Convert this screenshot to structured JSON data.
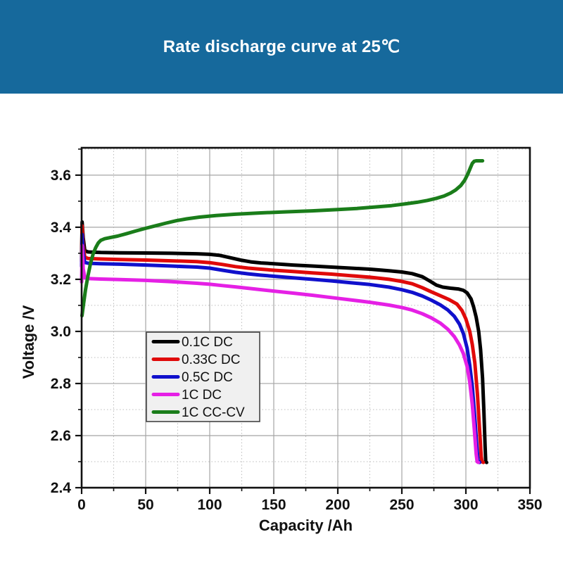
{
  "header": {
    "title": "Rate discharge curve at 25℃",
    "background_color": "#16699c",
    "text_color": "#ffffff"
  },
  "chart_data": {
    "type": "line",
    "title": "Rate discharge curve at 25℃",
    "xlabel": "Capacity /Ah",
    "ylabel": "Voltage /V",
    "xlim": [
      0,
      350
    ],
    "ylim": [
      2.4,
      3.705
    ],
    "x_major_ticks": [
      0,
      50,
      100,
      150,
      200,
      250,
      300,
      350
    ],
    "x_minor_step": 25,
    "y_major_ticks": [
      2.4,
      2.6,
      2.8,
      3.0,
      3.2,
      3.4,
      3.6
    ],
    "y_minor_step": 0.1,
    "grid": "major-solid-gray, minor-dotted-light",
    "legend_position": "inside-left-middle",
    "axis_color": "#111111",
    "grid_major_color": "#a5a5a5",
    "grid_minor_color": "#bdbdbd",
    "legend_bg": "#f0f0f0",
    "legend_border": "#444444",
    "series": [
      {
        "name": "0.1C DC",
        "color": "#000000",
        "points": [
          [
            0,
            3.3
          ],
          [
            0.4,
            3.42
          ],
          [
            1.2,
            3.36
          ],
          [
            2.5,
            3.31
          ],
          [
            5,
            3.305
          ],
          [
            15,
            3.303
          ],
          [
            30,
            3.302
          ],
          [
            50,
            3.301
          ],
          [
            70,
            3.3
          ],
          [
            90,
            3.298
          ],
          [
            100,
            3.296
          ],
          [
            108,
            3.292
          ],
          [
            116,
            3.283
          ],
          [
            124,
            3.274
          ],
          [
            132,
            3.267
          ],
          [
            140,
            3.263
          ],
          [
            150,
            3.26
          ],
          [
            165,
            3.255
          ],
          [
            180,
            3.251
          ],
          [
            195,
            3.247
          ],
          [
            210,
            3.243
          ],
          [
            225,
            3.239
          ],
          [
            240,
            3.233
          ],
          [
            250,
            3.228
          ],
          [
            258,
            3.222
          ],
          [
            266,
            3.21
          ],
          [
            272,
            3.193
          ],
          [
            277,
            3.178
          ],
          [
            282,
            3.17
          ],
          [
            288,
            3.166
          ],
          [
            294,
            3.163
          ],
          [
            298,
            3.158
          ],
          [
            301,
            3.148
          ],
          [
            304,
            3.125
          ],
          [
            306,
            3.095
          ],
          [
            308,
            3.055
          ],
          [
            310,
            3.0
          ],
          [
            311.5,
            2.93
          ],
          [
            313,
            2.82
          ],
          [
            314,
            2.7
          ],
          [
            315,
            2.56
          ],
          [
            315.5,
            2.5
          ],
          [
            316.2,
            2.497
          ]
        ]
      },
      {
        "name": "0.33C DC",
        "color": "#e00a0a",
        "points": [
          [
            0,
            3.27
          ],
          [
            0.4,
            3.405
          ],
          [
            1.2,
            3.33
          ],
          [
            2.5,
            3.285
          ],
          [
            5,
            3.28
          ],
          [
            15,
            3.278
          ],
          [
            30,
            3.276
          ],
          [
            50,
            3.274
          ],
          [
            70,
            3.271
          ],
          [
            90,
            3.268
          ],
          [
            100,
            3.264
          ],
          [
            110,
            3.257
          ],
          [
            120,
            3.249
          ],
          [
            130,
            3.243
          ],
          [
            140,
            3.239
          ],
          [
            150,
            3.235
          ],
          [
            165,
            3.23
          ],
          [
            180,
            3.225
          ],
          [
            195,
            3.22
          ],
          [
            210,
            3.214
          ],
          [
            225,
            3.208
          ],
          [
            240,
            3.2
          ],
          [
            250,
            3.192
          ],
          [
            258,
            3.183
          ],
          [
            266,
            3.168
          ],
          [
            273,
            3.152
          ],
          [
            280,
            3.137
          ],
          [
            287,
            3.122
          ],
          [
            293,
            3.105
          ],
          [
            297,
            3.08
          ],
          [
            300,
            3.048
          ],
          [
            303,
            3.0
          ],
          [
            305,
            2.95
          ],
          [
            307,
            2.88
          ],
          [
            309,
            2.76
          ],
          [
            310.5,
            2.64
          ],
          [
            312,
            2.52
          ],
          [
            312.6,
            2.5
          ],
          [
            313.6,
            2.497
          ]
        ]
      },
      {
        "name": "0.5C DC",
        "color": "#1010cc",
        "points": [
          [
            0,
            3.25
          ],
          [
            0.4,
            3.372
          ],
          [
            1.2,
            3.3
          ],
          [
            2.5,
            3.265
          ],
          [
            5,
            3.262
          ],
          [
            15,
            3.26
          ],
          [
            30,
            3.258
          ],
          [
            50,
            3.255
          ],
          [
            70,
            3.251
          ],
          [
            90,
            3.247
          ],
          [
            100,
            3.243
          ],
          [
            110,
            3.235
          ],
          [
            120,
            3.227
          ],
          [
            130,
            3.221
          ],
          [
            140,
            3.216
          ],
          [
            150,
            3.212
          ],
          [
            165,
            3.206
          ],
          [
            180,
            3.2
          ],
          [
            195,
            3.194
          ],
          [
            210,
            3.187
          ],
          [
            225,
            3.18
          ],
          [
            240,
            3.17
          ],
          [
            250,
            3.16
          ],
          [
            258,
            3.15
          ],
          [
            266,
            3.136
          ],
          [
            273,
            3.12
          ],
          [
            280,
            3.102
          ],
          [
            286,
            3.082
          ],
          [
            291,
            3.058
          ],
          [
            295,
            3.028
          ],
          [
            298,
            2.992
          ],
          [
            301,
            2.935
          ],
          [
            303,
            2.87
          ],
          [
            305,
            2.79
          ],
          [
            307,
            2.67
          ],
          [
            308.5,
            2.56
          ],
          [
            309.5,
            2.505
          ],
          [
            310.8,
            2.497
          ]
        ]
      },
      {
        "name": "1C DC",
        "color": "#e520e5",
        "points": [
          [
            0,
            3.19
          ],
          [
            0.4,
            3.33
          ],
          [
            1.2,
            3.24
          ],
          [
            2.5,
            3.206
          ],
          [
            5,
            3.203
          ],
          [
            15,
            3.201
          ],
          [
            30,
            3.199
          ],
          [
            50,
            3.196
          ],
          [
            70,
            3.191
          ],
          [
            90,
            3.185
          ],
          [
            100,
            3.181
          ],
          [
            110,
            3.176
          ],
          [
            120,
            3.171
          ],
          [
            135,
            3.163
          ],
          [
            150,
            3.155
          ],
          [
            165,
            3.147
          ],
          [
            180,
            3.139
          ],
          [
            195,
            3.13
          ],
          [
            210,
            3.121
          ],
          [
            225,
            3.112
          ],
          [
            240,
            3.101
          ],
          [
            250,
            3.092
          ],
          [
            258,
            3.082
          ],
          [
            266,
            3.068
          ],
          [
            273,
            3.052
          ],
          [
            280,
            3.032
          ],
          [
            286,
            3.008
          ],
          [
            291,
            2.98
          ],
          [
            295,
            2.948
          ],
          [
            298,
            2.915
          ],
          [
            301,
            2.865
          ],
          [
            303,
            2.805
          ],
          [
            305,
            2.72
          ],
          [
            306.5,
            2.63
          ],
          [
            308,
            2.53
          ],
          [
            308.8,
            2.5
          ],
          [
            309.8,
            2.497
          ]
        ]
      },
      {
        "name": "1C CC-CV",
        "color": "#1a7d1a",
        "points": [
          [
            0.3,
            3.06
          ],
          [
            1.5,
            3.105
          ],
          [
            3,
            3.16
          ],
          [
            5,
            3.215
          ],
          [
            7,
            3.262
          ],
          [
            9,
            3.298
          ],
          [
            11,
            3.322
          ],
          [
            13,
            3.34
          ],
          [
            15,
            3.35
          ],
          [
            18,
            3.356
          ],
          [
            22,
            3.36
          ],
          [
            28,
            3.366
          ],
          [
            35,
            3.375
          ],
          [
            42,
            3.385
          ],
          [
            50,
            3.396
          ],
          [
            58,
            3.406
          ],
          [
            66,
            3.416
          ],
          [
            74,
            3.425
          ],
          [
            82,
            3.432
          ],
          [
            92,
            3.439
          ],
          [
            105,
            3.445
          ],
          [
            120,
            3.45
          ],
          [
            140,
            3.455
          ],
          [
            160,
            3.459
          ],
          [
            180,
            3.463
          ],
          [
            200,
            3.468
          ],
          [
            215,
            3.472
          ],
          [
            230,
            3.478
          ],
          [
            242,
            3.483
          ],
          [
            252,
            3.489
          ],
          [
            262,
            3.496
          ],
          [
            270,
            3.503
          ],
          [
            277,
            3.511
          ],
          [
            283,
            3.52
          ],
          [
            288,
            3.531
          ],
          [
            292,
            3.543
          ],
          [
            296,
            3.56
          ],
          [
            299,
            3.58
          ],
          [
            301.5,
            3.604
          ],
          [
            303.5,
            3.628
          ],
          [
            305,
            3.645
          ],
          [
            306.5,
            3.653
          ],
          [
            308,
            3.655
          ],
          [
            313,
            3.655
          ]
        ]
      }
    ]
  }
}
